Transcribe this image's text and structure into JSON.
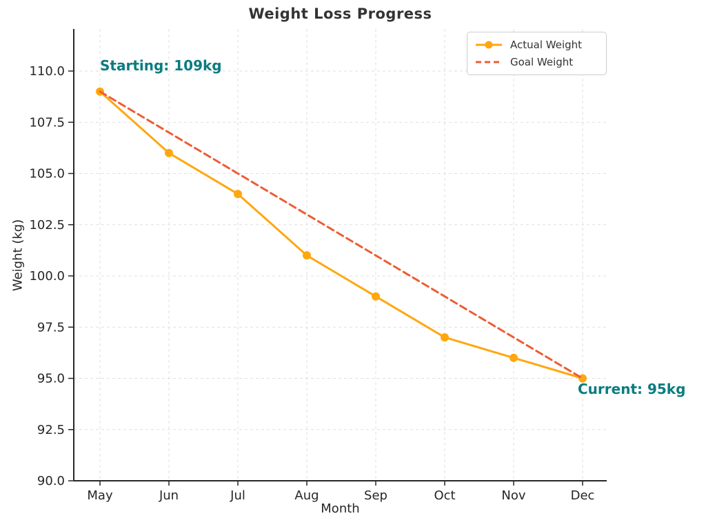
{
  "chart_data": {
    "type": "line",
    "title": "Weight Loss Progress",
    "xlabel": "Month",
    "ylabel": "Weight (kg)",
    "categories": [
      "May",
      "Jun",
      "Jul",
      "Aug",
      "Sep",
      "Oct",
      "Nov",
      "Dec"
    ],
    "series": [
      {
        "name": "Actual Weight",
        "values": [
          109,
          106,
          104,
          101,
          99,
          97,
          96,
          95
        ],
        "color": "#FFA70F",
        "style": "solid",
        "marker": "circle"
      },
      {
        "name": "Goal Weight",
        "values": [
          109,
          107,
          105,
          103,
          101,
          99,
          97,
          95
        ],
        "color": "#EE5C35",
        "style": "dashed",
        "marker": "none"
      }
    ],
    "yticks": [
      90.0,
      92.5,
      95.0,
      97.5,
      100.0,
      102.5,
      105.0,
      107.5,
      110.0
    ],
    "ytick_labels": [
      "90.0",
      "92.5",
      "95.0",
      "97.5",
      "100.0",
      "102.5",
      "105.0",
      "107.5",
      "110.0"
    ],
    "ylim": [
      90,
      112
    ],
    "grid": true,
    "legend_position": "upper right",
    "annotations": [
      {
        "text": "Starting: 109kg",
        "color": "#0B7C80"
      },
      {
        "text": "Current: 95kg",
        "color": "#0B7C80"
      }
    ],
    "colors": {
      "axis": "#262626",
      "grid": "#DFDFDF",
      "tick_text": "#262626",
      "title_text": "#333333",
      "legend_border": "#CCCCCC"
    }
  }
}
